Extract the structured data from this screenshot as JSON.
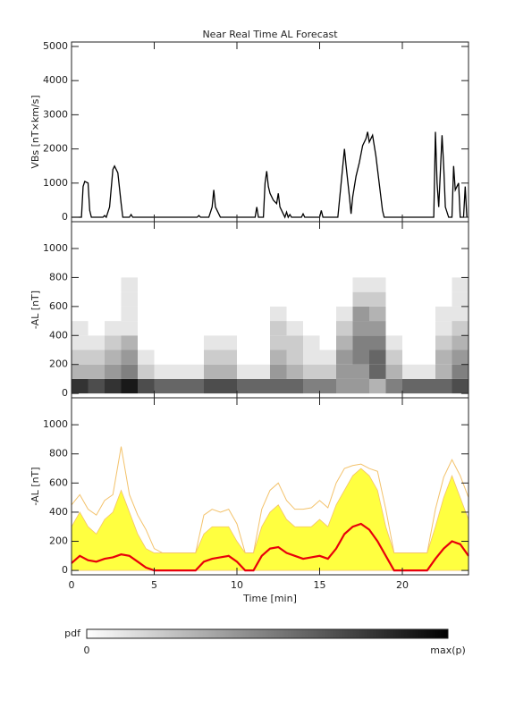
{
  "chart_data": [
    {
      "type": "line",
      "title": "Near Real Time AL Forecast",
      "ylabel": "VBs [nT×km/s]",
      "color": "#000000",
      "x": [
        0,
        0.6,
        0.7,
        0.8,
        1,
        1.1,
        1.2,
        1.9,
        2,
        2.1,
        2.3,
        2.5,
        2.6,
        2.8,
        3,
        3.1,
        3.5,
        3.6,
        3.7,
        7.6,
        7.7,
        7.8,
        8.3,
        8.5,
        8.6,
        8.7,
        8.9,
        9,
        11.1,
        11.2,
        11.3,
        11.6,
        11.7,
        11.8,
        11.9,
        12,
        12.2,
        12.4,
        12.5,
        12.6,
        12.8,
        12.9,
        13,
        13.1,
        13.2,
        13.3,
        13.9,
        14,
        14.1,
        15,
        15.1,
        15.2,
        16.1,
        16.3,
        16.5,
        16.6,
        16.8,
        16.9,
        17,
        17.2,
        17.4,
        17.6,
        17.8,
        17.9,
        18,
        18.2,
        18.4,
        18.6,
        18.8,
        18.9,
        21.9,
        22,
        22.1,
        22.2,
        22.4,
        22.5,
        22.6,
        22.8,
        23,
        23.1,
        23.2,
        23.4,
        23.5,
        23.7,
        23.8,
        23.9
      ],
      "values": [
        0,
        0,
        900,
        1050,
        1000,
        200,
        0,
        0,
        50,
        0,
        300,
        1400,
        1500,
        1300,
        400,
        0,
        0,
        80,
        0,
        0,
        50,
        0,
        0,
        300,
        800,
        300,
        100,
        0,
        0,
        300,
        0,
        0,
        1000,
        1350,
        900,
        700,
        500,
        400,
        700,
        300,
        100,
        0,
        150,
        0,
        80,
        0,
        0,
        100,
        0,
        0,
        200,
        0,
        0,
        1000,
        2000,
        1500,
        600,
        100,
        600,
        1200,
        1600,
        2100,
        2300,
        2500,
        2200,
        2400,
        1800,
        1000,
        200,
        0,
        0,
        2500,
        1000,
        300,
        2400,
        1500,
        300,
        0,
        0,
        1500,
        800,
        1000,
        0,
        0,
        900,
        0
      ],
      "xlim": [
        0,
        24
      ],
      "xticks": [
        0,
        5,
        10,
        15,
        20
      ],
      "ylim": [
        -130,
        5130
      ],
      "yticks": [
        0,
        1000,
        2000,
        3000,
        4000,
        5000
      ]
    },
    {
      "type": "heatmap",
      "ylabel": "-AL [nT]",
      "xbins": [
        0,
        1,
        2,
        3,
        4,
        5,
        6,
        7,
        8,
        9,
        10,
        11,
        12,
        13,
        14,
        15,
        16,
        17,
        18,
        19,
        20,
        21,
        22,
        23,
        24
      ],
      "ybins": [
        0,
        100,
        200,
        300,
        400,
        500,
        600,
        700,
        800
      ],
      "z": [
        [
          0.8,
          0.7,
          0.8,
          0.9,
          0.7,
          0.6,
          0.6,
          0.6,
          0.7,
          0.7,
          0.6,
          0.6,
          0.6,
          0.6,
          0.5,
          0.5,
          0.4,
          0.4,
          0.3,
          0.5,
          0.6,
          0.6,
          0.6,
          0.7
        ],
        [
          0.3,
          0.3,
          0.4,
          0.5,
          0.2,
          0.1,
          0.1,
          0.1,
          0.3,
          0.3,
          0.1,
          0.1,
          0.4,
          0.3,
          0.2,
          0.2,
          0.4,
          0.4,
          0.6,
          0.3,
          0.1,
          0.1,
          0.3,
          0.5
        ],
        [
          0.2,
          0.2,
          0.3,
          0.4,
          0.1,
          0,
          0,
          0,
          0.2,
          0.2,
          0,
          0,
          0.3,
          0.2,
          0.1,
          0.1,
          0.4,
          0.5,
          0.6,
          0.2,
          0,
          0,
          0.3,
          0.4
        ],
        [
          0.1,
          0.1,
          0.2,
          0.3,
          0,
          0,
          0,
          0,
          0.1,
          0.1,
          0,
          0,
          0.2,
          0.2,
          0.1,
          0,
          0.3,
          0.5,
          0.5,
          0.1,
          0,
          0,
          0.2,
          0.3
        ],
        [
          0.1,
          0,
          0.1,
          0.1,
          0,
          0,
          0,
          0,
          0,
          0,
          0,
          0,
          0.2,
          0.1,
          0,
          0,
          0.2,
          0.4,
          0.4,
          0,
          0,
          0,
          0.1,
          0.2
        ],
        [
          0,
          0,
          0,
          0.1,
          0,
          0,
          0,
          0,
          0,
          0,
          0,
          0,
          0.1,
          0,
          0,
          0,
          0.1,
          0.4,
          0.3,
          0,
          0,
          0,
          0.1,
          0.1
        ],
        [
          0,
          0,
          0,
          0.1,
          0,
          0,
          0,
          0,
          0,
          0,
          0,
          0,
          0,
          0,
          0,
          0,
          0,
          0.2,
          0.2,
          0,
          0,
          0,
          0,
          0.1
        ],
        [
          0,
          0,
          0,
          0.1,
          0,
          0,
          0,
          0,
          0,
          0,
          0,
          0,
          0,
          0,
          0,
          0,
          0,
          0.1,
          0.1,
          0,
          0,
          0,
          0,
          0.1
        ]
      ],
      "xlim": [
        0,
        24
      ],
      "xticks": [
        0,
        5,
        10,
        15,
        20
      ],
      "ylim": [
        -30,
        1185
      ],
      "yticks": [
        0,
        200,
        400,
        600,
        800,
        1000
      ]
    },
    {
      "type": "area",
      "ylabel": "-AL [nT]",
      "xlabel": "Time [min]",
      "x": [
        0,
        0.5,
        1,
        1.5,
        2,
        2.5,
        3,
        3.5,
        4,
        4.5,
        5,
        5.5,
        6,
        6.5,
        7,
        7.5,
        8,
        8.5,
        9,
        9.5,
        10,
        10.5,
        11,
        11.5,
        12,
        12.5,
        13,
        13.5,
        14,
        14.5,
        15,
        15.5,
        16,
        16.5,
        17,
        17.5,
        18,
        18.5,
        19,
        19.5,
        20,
        20.5,
        21,
        21.5,
        22,
        22.5,
        23,
        23.5,
        24
      ],
      "series": [
        {
          "kind": "line",
          "color": "#f3c26b",
          "values": [
            450,
            520,
            420,
            380,
            480,
            520,
            850,
            520,
            380,
            280,
            150,
            120,
            120,
            120,
            120,
            120,
            380,
            420,
            400,
            420,
            320,
            120,
            120,
            420,
            550,
            600,
            480,
            420,
            420,
            430,
            480,
            430,
            600,
            700,
            720,
            730,
            700,
            680,
            420,
            120,
            120,
            120,
            120,
            120,
            420,
            640,
            760,
            650,
            500
          ]
        },
        {
          "kind": "area",
          "color": "#ffff40",
          "values": [
            300,
            400,
            300,
            250,
            350,
            400,
            550,
            400,
            250,
            150,
            120,
            120,
            120,
            120,
            120,
            120,
            250,
            300,
            300,
            300,
            200,
            120,
            120,
            300,
            400,
            450,
            350,
            300,
            300,
            300,
            350,
            300,
            450,
            550,
            650,
            700,
            650,
            550,
            300,
            120,
            120,
            120,
            120,
            120,
            300,
            500,
            650,
            500,
            350
          ]
        },
        {
          "kind": "line",
          "color": "#e8000b",
          "values": [
            50,
            100,
            70,
            60,
            80,
            90,
            110,
            100,
            60,
            20,
            0,
            0,
            0,
            0,
            0,
            0,
            60,
            80,
            90,
            100,
            60,
            0,
            0,
            100,
            150,
            160,
            120,
            100,
            80,
            90,
            100,
            80,
            150,
            250,
            300,
            320,
            280,
            200,
            100,
            0,
            0,
            0,
            0,
            0,
            80,
            150,
            200,
            180,
            100
          ]
        }
      ],
      "xlim": [
        0,
        24
      ],
      "xticks": [
        0,
        5,
        10,
        15,
        20
      ],
      "ylim": [
        -30,
        1185
      ],
      "yticks": [
        0,
        200,
        400,
        600,
        800,
        1000
      ]
    }
  ],
  "colorbar": {
    "label": "pdf",
    "min_label": "0",
    "max_label": "max(p)"
  }
}
